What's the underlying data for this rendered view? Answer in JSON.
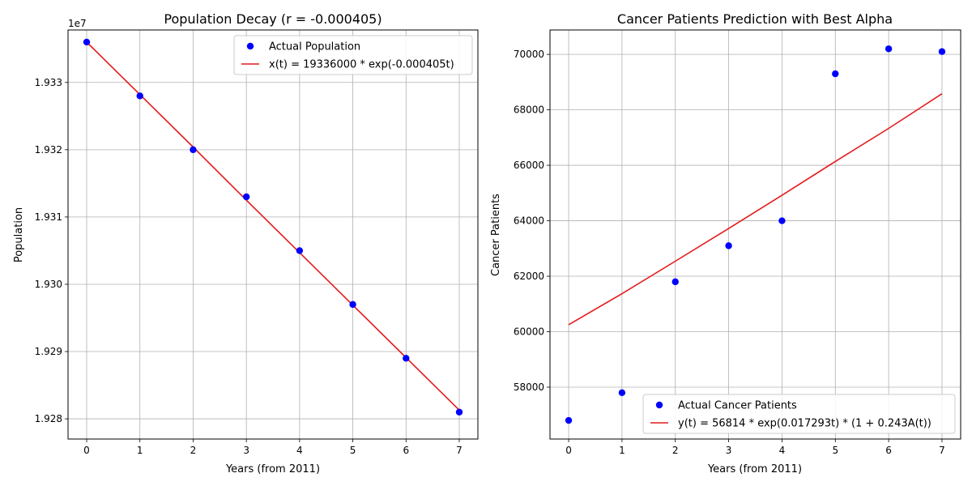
{
  "chart_data": [
    {
      "type": "line",
      "title": "Population Decay (r = -0.000405)",
      "xlabel": "Years (from 2011)",
      "ylabel": "Population",
      "offset_label": "1e7",
      "x_ticks": [
        0,
        1,
        2,
        3,
        4,
        5,
        6,
        7
      ],
      "y_ticks": [
        1.928,
        1.929,
        1.93,
        1.931,
        1.932,
        1.933
      ],
      "y_tick_labels": [
        "1.928",
        "1.929",
        "1.930",
        "1.931",
        "1.932",
        "1.933"
      ],
      "xlim": [
        -0.35,
        7.35
      ],
      "ylim": [
        1.9277,
        1.93378
      ],
      "grid": true,
      "legend_position": "upper-right",
      "series": [
        {
          "name": "Actual Population",
          "kind": "scatter",
          "color": "#0000ff",
          "x": [
            0,
            1,
            2,
            3,
            4,
            5,
            6,
            7
          ],
          "y": [
            1.9336,
            1.9328,
            1.932,
            1.9313,
            1.9305,
            1.9297,
            1.9289,
            1.9281
          ]
        },
        {
          "name": "x(t) = 19336000 * exp(-0.000405t)",
          "kind": "line",
          "color": "#e41a1c",
          "x": [
            0,
            1,
            2,
            3,
            4,
            5,
            6,
            7
          ],
          "y": [
            1.9336,
            1.93282,
            1.93204,
            1.93125,
            1.93047,
            1.92969,
            1.92891,
            1.92813
          ]
        }
      ]
    },
    {
      "type": "line",
      "title": "Cancer Patients Prediction with Best Alpha",
      "xlabel": "Years (from 2011)",
      "ylabel": "Cancer Patients",
      "offset_label": "",
      "x_ticks": [
        0,
        1,
        2,
        3,
        4,
        5,
        6,
        7
      ],
      "y_ticks": [
        58000,
        60000,
        62000,
        64000,
        66000,
        68000,
        70000
      ],
      "y_tick_labels": [
        "58000",
        "60000",
        "62000",
        "64000",
        "66000",
        "68000",
        "70000"
      ],
      "xlim": [
        -0.35,
        7.35
      ],
      "ylim": [
        56130,
        70880
      ],
      "grid": true,
      "legend_position": "lower-right",
      "series": [
        {
          "name": "Actual Cancer Patients",
          "kind": "scatter",
          "color": "#0000ff",
          "x": [
            0,
            1,
            2,
            3,
            4,
            5,
            6,
            7
          ],
          "y": [
            56800,
            57800,
            61800,
            63100,
            64000,
            69300,
            70200,
            70100
          ]
        },
        {
          "name": "y(t) = 56814 * exp(0.017293t) * (1 + 0.243A(t))",
          "kind": "line",
          "color": "#e41a1c",
          "x": [
            0,
            1,
            2,
            3,
            4,
            5,
            6,
            7
          ],
          "y": [
            60250,
            61370,
            62540,
            63720,
            64920,
            66140,
            67330,
            68580
          ]
        }
      ]
    }
  ]
}
